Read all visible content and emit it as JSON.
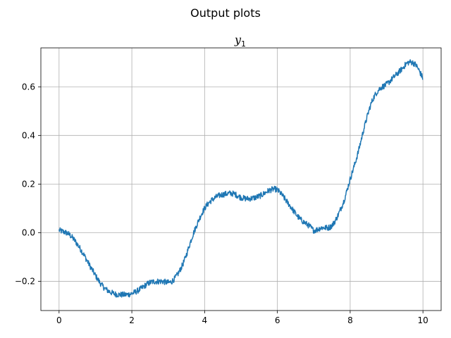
{
  "figure": {
    "suptitle": "Output plots"
  },
  "chart_data": {
    "type": "line",
    "title_base": "y",
    "title_subscript": "1",
    "xlabel": "",
    "ylabel": "",
    "xlim": [
      -0.5,
      10.5
    ],
    "ylim": [
      -0.32,
      0.76
    ],
    "xticks": [
      0,
      2,
      4,
      6,
      8,
      10
    ],
    "xtick_labels": [
      "0",
      "2",
      "4",
      "6",
      "8",
      "10"
    ],
    "yticks": [
      -0.2,
      0.0,
      0.2,
      0.4,
      0.6
    ],
    "ytick_labels": [
      "−0.2",
      "0.0",
      "0.2",
      "0.4",
      "0.6"
    ],
    "grid": true,
    "noise_amplitude": 0.012,
    "series": [
      {
        "color": "#1f77b4",
        "x": [
          0,
          0.3,
          0.6,
          0.9,
          1.2,
          1.5,
          1.8,
          2.0,
          2.2,
          2.5,
          2.8,
          3.1,
          3.4,
          3.7,
          4.0,
          4.3,
          4.6,
          4.8,
          5.0,
          5.2,
          5.5,
          5.8,
          6.0,
          6.3,
          6.6,
          6.9,
          7.0,
          7.2,
          7.5,
          7.8,
          8.0,
          8.2,
          8.4,
          8.6,
          8.8,
          9.0,
          9.2,
          9.4,
          9.6,
          9.8,
          10.0
        ],
        "y": [
          0.01,
          -0.01,
          -0.07,
          -0.15,
          -0.22,
          -0.25,
          -0.255,
          -0.25,
          -0.235,
          -0.205,
          -0.2,
          -0.2,
          -0.13,
          0.0,
          0.1,
          0.145,
          0.16,
          0.16,
          0.145,
          0.14,
          0.15,
          0.175,
          0.175,
          0.12,
          0.06,
          0.025,
          0.01,
          0.02,
          0.03,
          0.12,
          0.22,
          0.32,
          0.44,
          0.54,
          0.59,
          0.61,
          0.64,
          0.67,
          0.7,
          0.69,
          0.635
        ]
      }
    ]
  }
}
